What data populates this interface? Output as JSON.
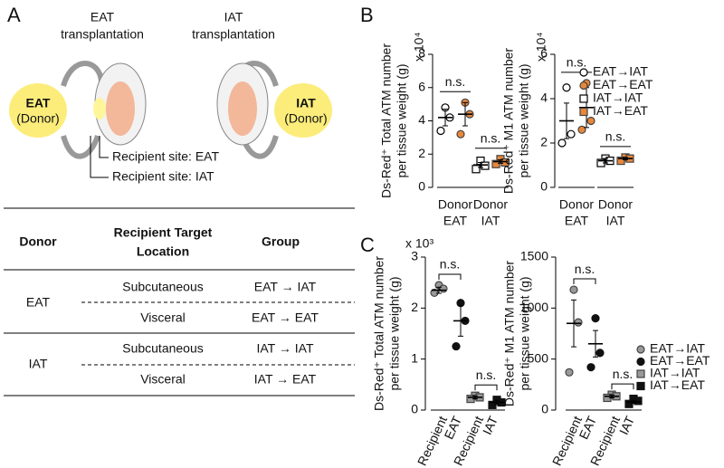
{
  "panel_labels": [
    "A",
    "B",
    "C"
  ],
  "panel_a": {
    "diagram": {
      "titles": [
        [
          "EAT",
          "transplantation"
        ],
        [
          "IAT",
          "transplantation"
        ]
      ],
      "donors": [
        [
          "EAT",
          "(Donor)"
        ],
        [
          "IAT",
          "(Donor)"
        ]
      ],
      "recipient_sites": [
        "Recipient site: EAT",
        "Recipient site: IAT"
      ]
    },
    "table": {
      "header": [
        "Donor",
        [
          "Recipient Target",
          "Location"
        ],
        "Group"
      ],
      "groups": [
        {
          "donor": "EAT",
          "rows": [
            [
              "Subcutaneous",
              "EAT → IAT"
            ],
            [
              "Visceral",
              "EAT → EAT"
            ]
          ]
        },
        {
          "donor": "IAT",
          "rows": [
            [
              "Subcutaneous",
              "IAT → IAT"
            ],
            [
              "Visceral",
              "IAT → EAT"
            ]
          ]
        }
      ]
    }
  },
  "chart_data": [
    {
      "type": "dot",
      "y_label": [
        "Ds-Red⁺ Total ATM number",
        "per tissue weight (g)"
      ],
      "multiplier": "x 10⁴",
      "categories": [
        [
          "Donor",
          "EAT"
        ],
        [
          "Donor",
          "IAT"
        ]
      ],
      "annotations": [
        "n.s.",
        "n.s."
      ],
      "annotation_style": "line",
      "ylim": [
        0,
        8
      ],
      "yticks": [
        0,
        2,
        4,
        6,
        8
      ],
      "series": [
        {
          "name": "EAT→IAT",
          "color": "#000000",
          "marker": "circle",
          "filled": false,
          "values": [
            [
              4.8,
              3.4,
              4.2
            ],
            null
          ],
          "mean": [
            4.2,
            null
          ],
          "error": [
            0.5,
            null
          ]
        },
        {
          "name": "EAT→EAT",
          "color": "#e8873a",
          "marker": "circle",
          "filled": true,
          "values": [
            [
              5.1,
              3.2,
              4.4
            ],
            null
          ],
          "mean": [
            4.4,
            null
          ],
          "error": [
            0.7,
            null
          ]
        },
        {
          "name": "IAT→IAT",
          "color": "#000000",
          "marker": "square",
          "filled": false,
          "values": [
            null,
            [
              1.6,
              1.1,
              1.3
            ]
          ],
          "mean": [
            null,
            1.35
          ],
          "error": [
            null,
            0.15
          ]
        },
        {
          "name": "IAT→EAT",
          "color": "#e8873a",
          "marker": "square",
          "filled": true,
          "values": [
            null,
            [
              1.7,
              1.4,
              1.5
            ]
          ],
          "mean": [
            null,
            1.55
          ],
          "error": [
            null,
            0.1
          ]
        }
      ]
    },
    {
      "type": "dot",
      "y_label": [
        "Ds-Red⁺ M1 ATM number",
        "per tissue weight (g)"
      ],
      "multiplier": "x 10⁴",
      "categories": [
        [
          "Donor",
          "EAT"
        ],
        [
          "Donor",
          "IAT"
        ]
      ],
      "annotations": [
        "n.s.",
        "n.s."
      ],
      "annotation_style": "line",
      "ylim": [
        0,
        6
      ],
      "yticks": [
        0,
        2,
        4,
        6
      ],
      "legend": "right",
      "series": [
        {
          "name": "EAT→IAT",
          "color": "#000000",
          "marker": "circle",
          "filled": false,
          "values": [
            [
              4.5,
              2.0,
              2.4
            ],
            null
          ],
          "mean": [
            3.0,
            null
          ],
          "error": [
            0.8,
            null
          ]
        },
        {
          "name": "EAT→EAT",
          "color": "#e8873a",
          "marker": "circle",
          "filled": true,
          "values": [
            [
              4.7,
              2.6,
              3.0
            ],
            null
          ],
          "mean": [
            3.6,
            null
          ],
          "error": [
            0.9,
            null
          ]
        },
        {
          "name": "IAT→IAT",
          "color": "#000000",
          "marker": "square",
          "filled": false,
          "values": [
            null,
            [
              1.3,
              1.1,
              1.2
            ]
          ],
          "mean": [
            null,
            1.2
          ],
          "error": [
            null,
            0.1
          ]
        },
        {
          "name": "IAT→EAT",
          "color": "#e8873a",
          "marker": "square",
          "filled": true,
          "values": [
            null,
            [
              1.35,
              1.2,
              1.3
            ]
          ],
          "mean": [
            null,
            1.3
          ],
          "error": [
            null,
            0.05
          ]
        }
      ]
    },
    {
      "type": "dot",
      "y_label": [
        "Ds-Red⁺ Total ATM number",
        "per tissue weight (g)"
      ],
      "multiplier": "x 10³",
      "categories": [
        [
          "Recipient",
          "EAT"
        ],
        [
          "Recipient",
          "IAT"
        ]
      ],
      "annotations": [
        "n.s.",
        "n.s."
      ],
      "annotation_style": "bracket",
      "ylim": [
        0,
        3
      ],
      "yticks": [
        0,
        1,
        2,
        3
      ],
      "series": [
        {
          "name": "EAT→IAT",
          "color": "#999999",
          "marker": "circle",
          "filled": true,
          "values": [
            [
              2.45,
              2.3,
              2.38
            ],
            null
          ],
          "mean": [
            2.35,
            null
          ],
          "error": [
            0.06,
            null
          ]
        },
        {
          "name": "EAT→EAT",
          "color": "#111111",
          "marker": "circle",
          "filled": true,
          "values": [
            [
              2.1,
              1.25,
              1.75
            ],
            null
          ],
          "mean": [
            1.75,
            null
          ],
          "error": [
            0.3,
            null
          ]
        },
        {
          "name": "IAT→IAT",
          "color": "#999999",
          "marker": "square",
          "filled": true,
          "values": [
            null,
            [
              0.28,
              0.22,
              0.25
            ]
          ],
          "mean": [
            null,
            0.25
          ],
          "error": [
            null,
            0.03
          ]
        },
        {
          "name": "IAT→EAT",
          "color": "#111111",
          "marker": "square",
          "filled": true,
          "values": [
            null,
            [
              0.2,
              0.1,
              0.15
            ]
          ],
          "mean": [
            null,
            0.15
          ],
          "error": [
            null,
            0.04
          ]
        }
      ]
    },
    {
      "type": "dot",
      "y_label": [
        "Ds-Red⁺ M1 ATM number",
        "per tissue weight (g)"
      ],
      "categories": [
        [
          "Recipient",
          "EAT"
        ],
        [
          "Recipient",
          "IAT"
        ]
      ],
      "annotations": [
        "n.s.",
        "n.s."
      ],
      "annotation_style": "bracket",
      "ylim": [
        0,
        1500
      ],
      "yticks": [
        0,
        500,
        1000,
        1500
      ],
      "legend": "right",
      "series": [
        {
          "name": "EAT→IAT",
          "color": "#999999",
          "marker": "circle",
          "filled": true,
          "values": [
            [
              1180,
              370,
              860
            ],
            null
          ],
          "mean": [
            850,
            null
          ],
          "error": [
            230,
            null
          ]
        },
        {
          "name": "EAT→EAT",
          "color": "#111111",
          "marker": "circle",
          "filled": true,
          "values": [
            [
              900,
              420,
              560
            ],
            null
          ],
          "mean": [
            650,
            null
          ],
          "error": [
            130,
            null
          ]
        },
        {
          "name": "IAT→IAT",
          "color": "#999999",
          "marker": "square",
          "filled": true,
          "values": [
            null,
            [
              150,
              120,
              135
            ]
          ],
          "mean": [
            null,
            135
          ],
          "error": [
            null,
            15
          ]
        },
        {
          "name": "IAT→EAT",
          "color": "#111111",
          "marker": "square",
          "filled": true,
          "values": [
            null,
            [
              110,
              60,
              90
            ]
          ],
          "mean": [
            null,
            80
          ],
          "error": [
            null,
            15
          ]
        }
      ]
    }
  ]
}
